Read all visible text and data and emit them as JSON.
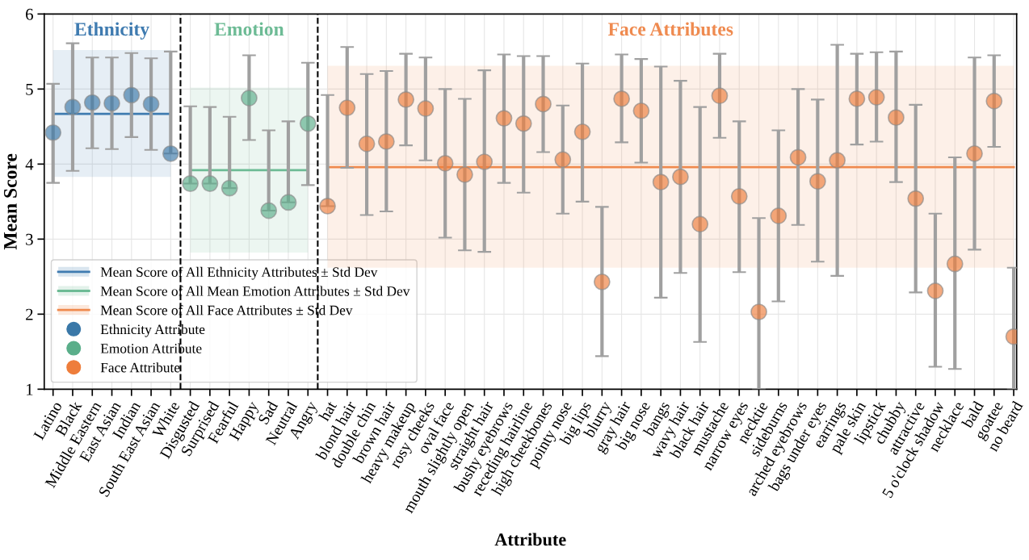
{
  "chart_data": {
    "type": "scatter",
    "xlabel": "Attribute",
    "ylabel": "Mean Score",
    "annotations": [
      "Ethnicity",
      "Emotion",
      "Face Attributes"
    ],
    "categories": [
      "Latino",
      "Black",
      "Middle Eastern",
      "East Asian",
      "Indian",
      "South East Asian",
      "White",
      "Disgusted",
      "Surprised",
      "Fearful",
      "Happy",
      "Sad",
      "Neutral",
      "Angry",
      "hat",
      "blond hair",
      "double chin",
      "brown hair",
      "heavy makeup",
      "rosy cheeks",
      "oval face",
      "mouth slightly open",
      "straight hair",
      "bushy eyebrows",
      "receding hairline",
      "high cheekbones",
      "pointy nose",
      "big lips",
      "blurry",
      "gray hair",
      "big nose",
      "bangs",
      "wavy hair",
      "black hair",
      "mustache",
      "narrow eyes",
      "necktie",
      "sideburns",
      "arched eyebrows",
      "bags under eyes",
      "earrings",
      "pale skin",
      "lipstick",
      "chubby",
      "attractive",
      "5 o'clock shadow",
      "necklace",
      "bald",
      "goatee",
      "no beard"
    ],
    "series": [
      {
        "type": "line",
        "name": "Mean Score of All Ethnicity Attributes ± Std Dev",
        "color": "#3f7bb0",
        "values": [
          4.67,
          4.67,
          4.67,
          4.67,
          4.67,
          4.67,
          4.67,
          null,
          null,
          null,
          null,
          null,
          null,
          null,
          null,
          null,
          null,
          null,
          null,
          null,
          null,
          null,
          null,
          null,
          null,
          null,
          null,
          null,
          null,
          null,
          null,
          null,
          null,
          null,
          null,
          null,
          null,
          null,
          null,
          null,
          null,
          null,
          null,
          null,
          null,
          null,
          null,
          null,
          null,
          null
        ],
        "lower": [
          3.83,
          3.83,
          3.83,
          3.83,
          3.83,
          3.83,
          3.83,
          null,
          null,
          null,
          null,
          null,
          null,
          null,
          null,
          null,
          null,
          null,
          null,
          null,
          null,
          null,
          null,
          null,
          null,
          null,
          null,
          null,
          null,
          null,
          null,
          null,
          null,
          null,
          null,
          null,
          null,
          null,
          null,
          null,
          null,
          null,
          null,
          null,
          null,
          null,
          null,
          null,
          null,
          null
        ],
        "upper": [
          5.52,
          5.52,
          5.52,
          5.52,
          5.52,
          5.52,
          5.52,
          null,
          null,
          null,
          null,
          null,
          null,
          null,
          null,
          null,
          null,
          null,
          null,
          null,
          null,
          null,
          null,
          null,
          null,
          null,
          null,
          null,
          null,
          null,
          null,
          null,
          null,
          null,
          null,
          null,
          null,
          null,
          null,
          null,
          null,
          null,
          null,
          null,
          null,
          null,
          null,
          null,
          null,
          null
        ]
      },
      {
        "type": "line",
        "name": "Mean Score of All Mean Emotion Attributes ± Std Dev",
        "color": "#6dbb95",
        "values": [
          null,
          null,
          null,
          null,
          null,
          null,
          null,
          3.92,
          3.92,
          3.92,
          3.92,
          3.92,
          3.92,
          3.92,
          null,
          null,
          null,
          null,
          null,
          null,
          null,
          null,
          null,
          null,
          null,
          null,
          null,
          null,
          null,
          null,
          null,
          null,
          null,
          null,
          null,
          null,
          null,
          null,
          null,
          null,
          null,
          null,
          null,
          null,
          null,
          null,
          null,
          null,
          null,
          null
        ],
        "lower": [
          null,
          null,
          null,
          null,
          null,
          null,
          null,
          2.82,
          2.82,
          2.82,
          2.82,
          2.82,
          2.82,
          2.82,
          null,
          null,
          null,
          null,
          null,
          null,
          null,
          null,
          null,
          null,
          null,
          null,
          null,
          null,
          null,
          null,
          null,
          null,
          null,
          null,
          null,
          null,
          null,
          null,
          null,
          null,
          null,
          null,
          null,
          null,
          null,
          null,
          null,
          null,
          null,
          null
        ],
        "upper": [
          null,
          null,
          null,
          null,
          null,
          null,
          null,
          5.02,
          5.02,
          5.02,
          5.02,
          5.02,
          5.02,
          5.02,
          null,
          null,
          null,
          null,
          null,
          null,
          null,
          null,
          null,
          null,
          null,
          null,
          null,
          null,
          null,
          null,
          null,
          null,
          null,
          null,
          null,
          null,
          null,
          null,
          null,
          null,
          null,
          null,
          null,
          null,
          null,
          null,
          null,
          null,
          null,
          null
        ]
      },
      {
        "type": "line",
        "name": "Mean Score of All Face Attributes ± Std Dev",
        "color": "#ef8a4f",
        "values": [
          null,
          null,
          null,
          null,
          null,
          null,
          null,
          null,
          null,
          null,
          null,
          null,
          null,
          null,
          3.96,
          3.96,
          3.96,
          3.96,
          3.96,
          3.96,
          3.96,
          3.96,
          3.96,
          3.96,
          3.96,
          3.96,
          3.96,
          3.96,
          3.96,
          3.96,
          3.96,
          3.96,
          3.96,
          3.96,
          3.96,
          3.96,
          3.96,
          3.96,
          3.96,
          3.96,
          3.96,
          3.96,
          3.96,
          3.96,
          3.96,
          3.96,
          3.96,
          3.96,
          3.96,
          3.96
        ],
        "lower": [
          null,
          null,
          null,
          null,
          null,
          null,
          null,
          null,
          null,
          null,
          null,
          null,
          null,
          null,
          2.62,
          2.62,
          2.62,
          2.62,
          2.62,
          2.62,
          2.62,
          2.62,
          2.62,
          2.62,
          2.62,
          2.62,
          2.62,
          2.62,
          2.62,
          2.62,
          2.62,
          2.62,
          2.62,
          2.62,
          2.62,
          2.62,
          2.62,
          2.62,
          2.62,
          2.62,
          2.62,
          2.62,
          2.62,
          2.62,
          2.62,
          2.62,
          2.62,
          2.62,
          2.62,
          2.62
        ],
        "upper": [
          null,
          null,
          null,
          null,
          null,
          null,
          null,
          null,
          null,
          null,
          null,
          null,
          null,
          null,
          5.31,
          5.31,
          5.31,
          5.31,
          5.31,
          5.31,
          5.31,
          5.31,
          5.31,
          5.31,
          5.31,
          5.31,
          5.31,
          5.31,
          5.31,
          5.31,
          5.31,
          5.31,
          5.31,
          5.31,
          5.31,
          5.31,
          5.31,
          5.31,
          5.31,
          5.31,
          5.31,
          5.31,
          5.31,
          5.31,
          5.31,
          5.31,
          5.31,
          5.31,
          5.31,
          5.31
        ]
      },
      {
        "name": "Ethnicity Attribute",
        "color": "#3a78a8",
        "marker": "circle",
        "values": [
          4.42,
          4.76,
          4.82,
          4.81,
          4.92,
          4.8,
          4.14,
          null,
          null,
          null,
          null,
          null,
          null,
          null,
          null,
          null,
          null,
          null,
          null,
          null,
          null,
          null,
          null,
          null,
          null,
          null,
          null,
          null,
          null,
          null,
          null,
          null,
          null,
          null,
          null,
          null,
          null,
          null,
          null,
          null,
          null,
          null,
          null,
          null,
          null,
          null,
          null,
          null,
          null,
          null
        ],
        "errors": [
          [
            3.75,
            5.07
          ],
          [
            3.91,
            5.61
          ],
          [
            4.21,
            5.42
          ],
          [
            4.2,
            5.42
          ],
          [
            4.36,
            5.48
          ],
          [
            4.19,
            5.41
          ],
          [
            4.14,
            5.5
          ],
          null,
          null,
          null,
          null,
          null,
          null,
          null,
          null,
          null,
          null,
          null,
          null,
          null,
          null,
          null,
          null,
          null,
          null,
          null,
          null,
          null,
          null,
          null,
          null,
          null,
          null,
          null,
          null,
          null,
          null,
          null,
          null,
          null,
          null,
          null,
          null,
          null,
          null,
          null,
          null,
          null,
          null,
          null
        ]
      },
      {
        "name": "Emotion Attribute",
        "color": "#5aae8a",
        "marker": "circle",
        "values": [
          null,
          null,
          null,
          null,
          null,
          null,
          null,
          3.74,
          3.74,
          3.68,
          4.88,
          3.38,
          3.49,
          4.54,
          null,
          null,
          null,
          null,
          null,
          null,
          null,
          null,
          null,
          null,
          null,
          null,
          null,
          null,
          null,
          null,
          null,
          null,
          null,
          null,
          null,
          null,
          null,
          null,
          null,
          null,
          null,
          null,
          null,
          null,
          null,
          null,
          null,
          null,
          null,
          null
        ],
        "errors": [
          null,
          null,
          null,
          null,
          null,
          null,
          null,
          [
            3.74,
            4.77
          ],
          [
            3.74,
            4.76
          ],
          [
            3.68,
            4.63
          ],
          [
            4.32,
            5.45
          ],
          [
            3.38,
            4.45
          ],
          [
            3.49,
            4.57
          ],
          [
            3.72,
            5.35
          ],
          null,
          null,
          null,
          null,
          null,
          null,
          null,
          null,
          null,
          null,
          null,
          null,
          null,
          null,
          null,
          null,
          null,
          null,
          null,
          null,
          null,
          null,
          null,
          null,
          null,
          null,
          null,
          null,
          null,
          null,
          null,
          null,
          null,
          null,
          null,
          null
        ]
      },
      {
        "name": "Face Attribute",
        "color": "#ee7d3b",
        "marker": "circle",
        "values": [
          null,
          null,
          null,
          null,
          null,
          null,
          null,
          null,
          null,
          null,
          null,
          null,
          null,
          null,
          3.44,
          4.75,
          4.27,
          4.3,
          4.86,
          4.74,
          4.01,
          3.86,
          4.03,
          4.61,
          4.54,
          4.8,
          4.06,
          4.43,
          2.43,
          4.87,
          4.71,
          3.76,
          3.83,
          3.2,
          4.91,
          3.57,
          2.03,
          3.31,
          4.09,
          3.77,
          4.05,
          4.87,
          4.89,
          4.62,
          3.54,
          2.31,
          2.67,
          4.14,
          4.84,
          1.7
        ],
        "errors": [
          null,
          null,
          null,
          null,
          null,
          null,
          null,
          null,
          null,
          null,
          null,
          null,
          null,
          null,
          [
            3.44,
            4.92
          ],
          [
            3.95,
            5.56
          ],
          [
            3.32,
            5.2
          ],
          [
            3.37,
            5.24
          ],
          [
            4.25,
            5.47
          ],
          [
            4.05,
            5.42
          ],
          [
            3.02,
            5.0
          ],
          [
            2.85,
            4.87
          ],
          [
            2.83,
            5.25
          ],
          [
            3.75,
            5.46
          ],
          [
            3.62,
            5.44
          ],
          [
            4.16,
            5.44
          ],
          [
            3.34,
            4.78
          ],
          [
            3.5,
            5.34
          ],
          [
            1.44,
            3.43
          ],
          [
            4.29,
            5.46
          ],
          [
            4.02,
            5.4
          ],
          [
            2.22,
            5.3
          ],
          [
            2.55,
            5.11
          ],
          [
            1.63,
            4.76
          ],
          [
            4.35,
            5.47
          ],
          [
            2.56,
            4.57
          ],
          [
            1.0,
            3.28
          ],
          [
            2.17,
            4.45
          ],
          [
            3.19,
            5.0
          ],
          [
            2.7,
            4.86
          ],
          [
            2.51,
            5.59
          ],
          [
            4.26,
            5.47
          ],
          [
            4.3,
            5.49
          ],
          [
            3.76,
            5.5
          ],
          [
            2.29,
            4.79
          ],
          [
            1.3,
            3.34
          ],
          [
            1.27,
            4.09
          ],
          [
            2.86,
            5.42
          ],
          [
            4.23,
            5.45
          ],
          [
            1.0,
            2.62
          ]
        ]
      }
    ],
    "ylim": [
      1,
      6
    ],
    "yticks": [
      1,
      2,
      3,
      4,
      5,
      6
    ],
    "grid": true,
    "legend": "bottom left"
  }
}
